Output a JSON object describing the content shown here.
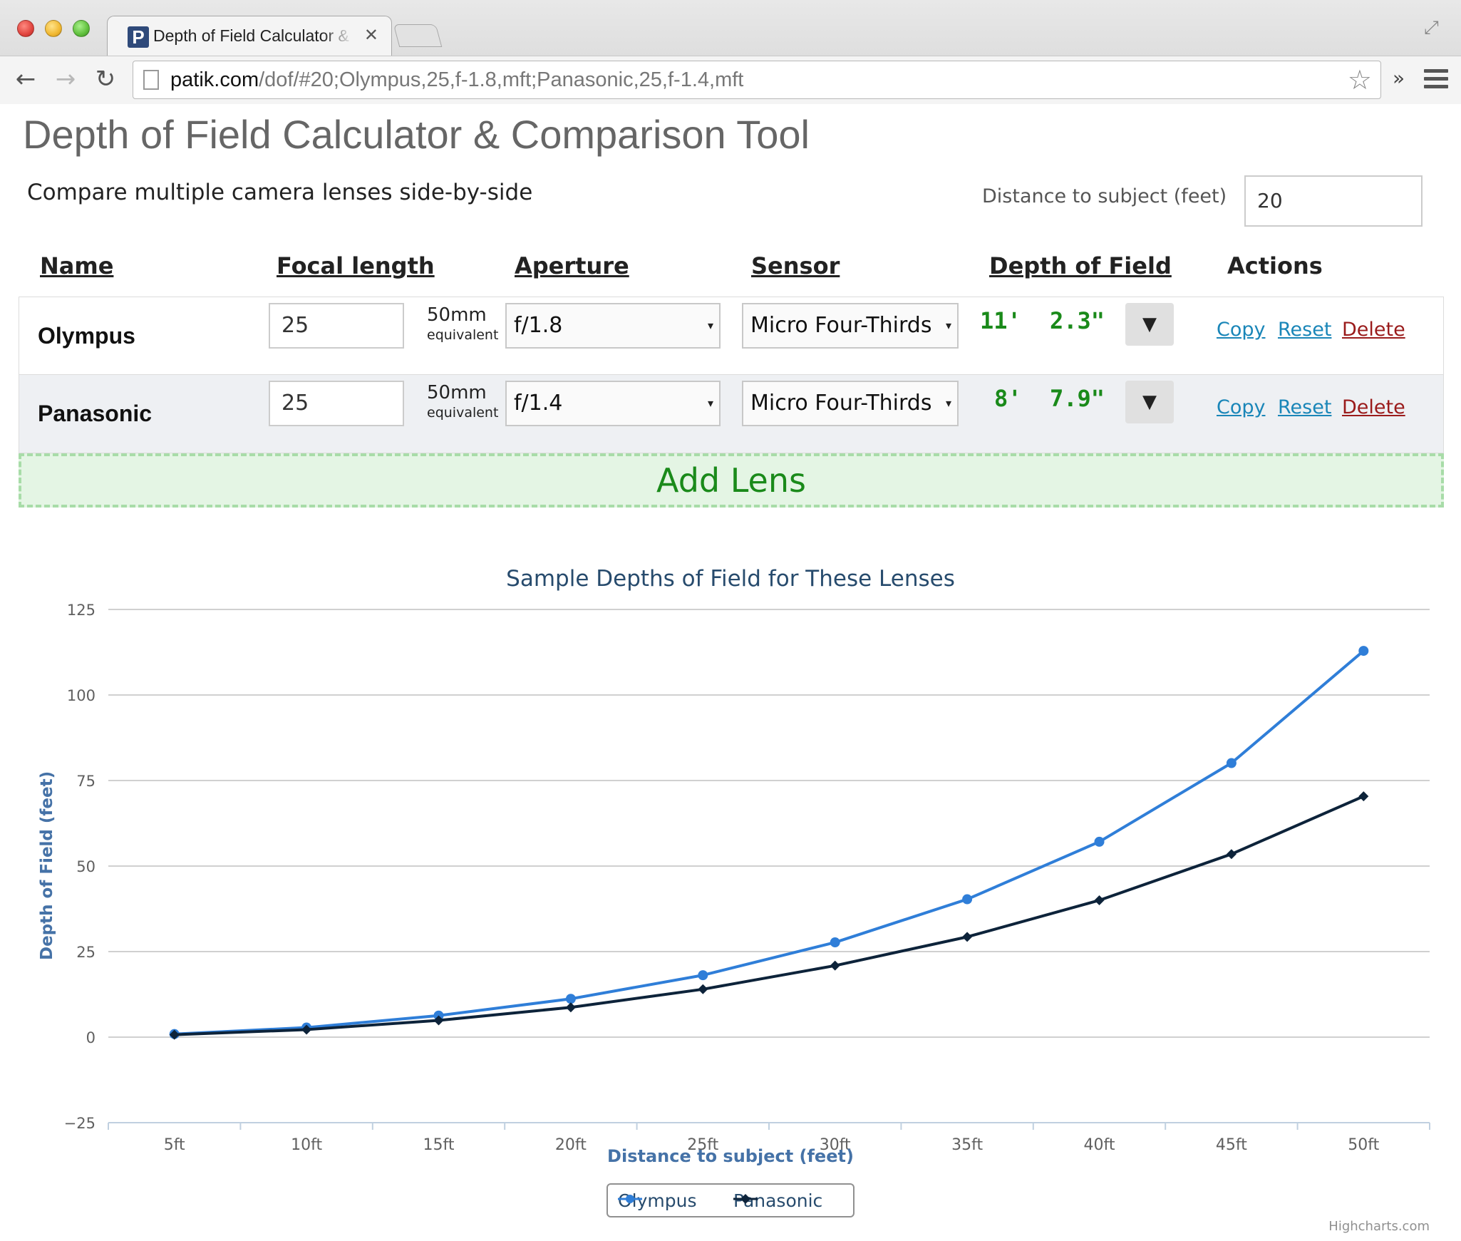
{
  "browser": {
    "tab_title": "Depth of Field Calculator & Comparison Tool",
    "tab_favicon_letter": "P",
    "url_host": "patik.com",
    "url_path": "/dof/#20;Olympus,25,f-1.8,mft;Panasonic,25,f-1.4,mft"
  },
  "page": {
    "title": "Depth of Field Calculator & Comparison Tool",
    "subtitle": "Compare multiple camera lenses side-by-side",
    "distance_label": "Distance to subject (feet)",
    "distance_value": "20"
  },
  "table": {
    "headers": {
      "name": "Name",
      "focal": "Focal length",
      "aperture": "Aperture",
      "sensor": "Sensor",
      "dof": "Depth of Field",
      "actions": "Actions"
    },
    "rows": [
      {
        "name": "Olympus",
        "focal_length": "25",
        "equiv_value": "50mm",
        "equiv_label": "equivalent",
        "aperture": "f/1.8",
        "sensor": "Micro Four-Thirds",
        "dof_feet": "11'",
        "dof_inches": "2.3\"",
        "toggle": "▼",
        "copy": "Copy",
        "reset": "Reset",
        "delete": "Delete"
      },
      {
        "name": "Panasonic",
        "focal_length": "25",
        "equiv_value": "50mm",
        "equiv_label": "equivalent",
        "aperture": "f/1.4",
        "sensor": "Micro Four-Thirds",
        "dof_feet": "8'",
        "dof_inches": "7.9\"",
        "toggle": "▼",
        "copy": "Copy",
        "reset": "Reset",
        "delete": "Delete"
      }
    ],
    "add_lens_label": "Add Lens"
  },
  "chart_data": {
    "type": "line",
    "title": "Sample Depths of Field for These Lenses",
    "xlabel": "Distance to subject (feet)",
    "ylabel": "Depth of Field (feet)",
    "categories": [
      "5ft",
      "10ft",
      "15ft",
      "20ft",
      "25ft",
      "30ft",
      "35ft",
      "40ft",
      "45ft",
      "50ft"
    ],
    "ylim": [
      -25,
      125
    ],
    "yticks": [
      125,
      100,
      75,
      50,
      25,
      0,
      -25
    ],
    "grid": true,
    "legend": "bottom-center",
    "series": [
      {
        "name": "Olympus",
        "color": "#2f7ed8",
        "marker": "circle",
        "values": [
          0.9,
          2.8,
          6.3,
          11.2,
          18.1,
          27.7,
          40.3,
          57.1,
          80.1,
          112.9
        ]
      },
      {
        "name": "Panasonic",
        "color": "#0d233a",
        "marker": "diamond",
        "values": [
          0.7,
          2.2,
          4.9,
          8.7,
          14.0,
          20.9,
          29.3,
          40.0,
          53.5,
          70.4
        ]
      }
    ],
    "credits": "Highcharts.com"
  }
}
